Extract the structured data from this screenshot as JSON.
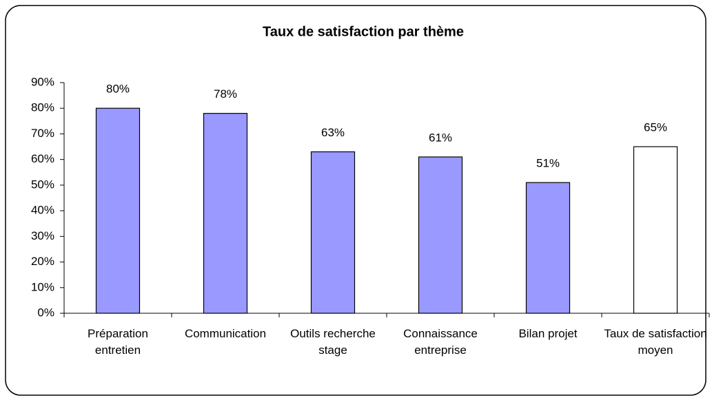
{
  "chart_data": {
    "type": "bar",
    "title": "Taux de satisfaction par thème",
    "categories": [
      "Préparation entretien",
      "Communication",
      "Outils recherche stage",
      "Connaissance entreprise",
      "Bilan projet",
      "Taux de satisfaction moyen"
    ],
    "values": [
      80,
      78,
      63,
      61,
      51,
      65
    ],
    "value_labels": [
      "80%",
      "78%",
      "63%",
      "61%",
      "51%",
      "65%"
    ],
    "colors": [
      "#9999ff",
      "#9999ff",
      "#9999ff",
      "#9999ff",
      "#9999ff",
      "#ffffff"
    ],
    "ylim": [
      0,
      90
    ],
    "yticks": [
      {
        "value": 0,
        "label": "0%"
      },
      {
        "value": 10,
        "label": "10%"
      },
      {
        "value": 20,
        "label": "20%"
      },
      {
        "value": 30,
        "label": "30%"
      },
      {
        "value": 40,
        "label": "40%"
      },
      {
        "value": 50,
        "label": "50%"
      },
      {
        "value": 60,
        "label": "60%"
      },
      {
        "value": 70,
        "label": "70%"
      },
      {
        "value": 80,
        "label": "80%"
      },
      {
        "value": 90,
        "label": "90%"
      }
    ],
    "grid": false
  }
}
